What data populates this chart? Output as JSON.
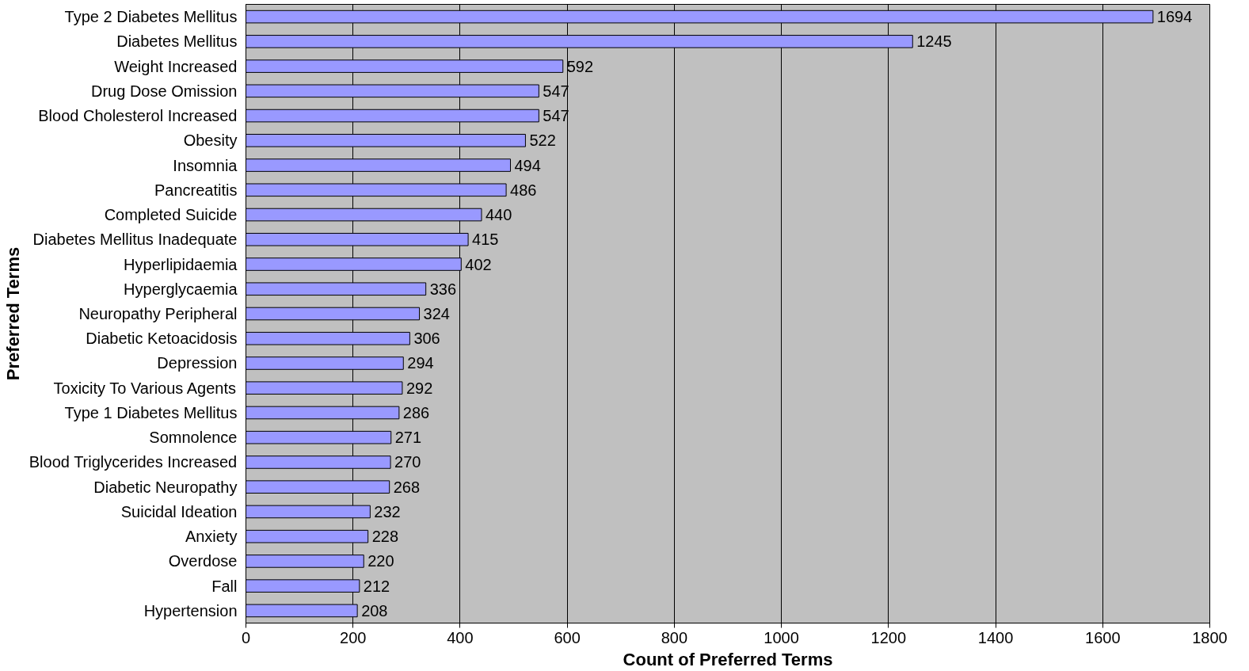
{
  "chart_data": {
    "type": "bar",
    "orientation": "horizontal",
    "xlabel": "Count of Preferred Terms",
    "ylabel": "Preferred Terms",
    "categories": [
      "Type 2 Diabetes Mellitus",
      "Diabetes Mellitus",
      "Weight Increased",
      "Drug Dose Omission",
      "Blood Cholesterol Increased",
      "Obesity",
      "Insomnia",
      "Pancreatitis",
      "Completed Suicide",
      "Diabetes Mellitus Inadequate",
      "Hyperlipidaemia",
      "Hyperglycaemia",
      "Neuropathy Peripheral",
      "Diabetic Ketoacidosis",
      "Depression",
      "Toxicity To Various Agents",
      "Type 1 Diabetes Mellitus",
      "Somnolence",
      "Blood Triglycerides Increased",
      "Diabetic Neuropathy",
      "Suicidal Ideation",
      "Anxiety",
      "Overdose",
      "Fall",
      "Hypertension"
    ],
    "values": [
      1694,
      1245,
      592,
      547,
      547,
      522,
      494,
      486,
      440,
      415,
      402,
      336,
      324,
      306,
      294,
      292,
      286,
      271,
      270,
      268,
      232,
      228,
      220,
      212,
      208
    ],
    "color": "#9999ff",
    "data_labels": true,
    "xlim": [
      0,
      1800
    ],
    "xticks": [
      0,
      200,
      400,
      600,
      800,
      1000,
      1200,
      1400,
      1600,
      1800
    ],
    "grid": "x"
  }
}
